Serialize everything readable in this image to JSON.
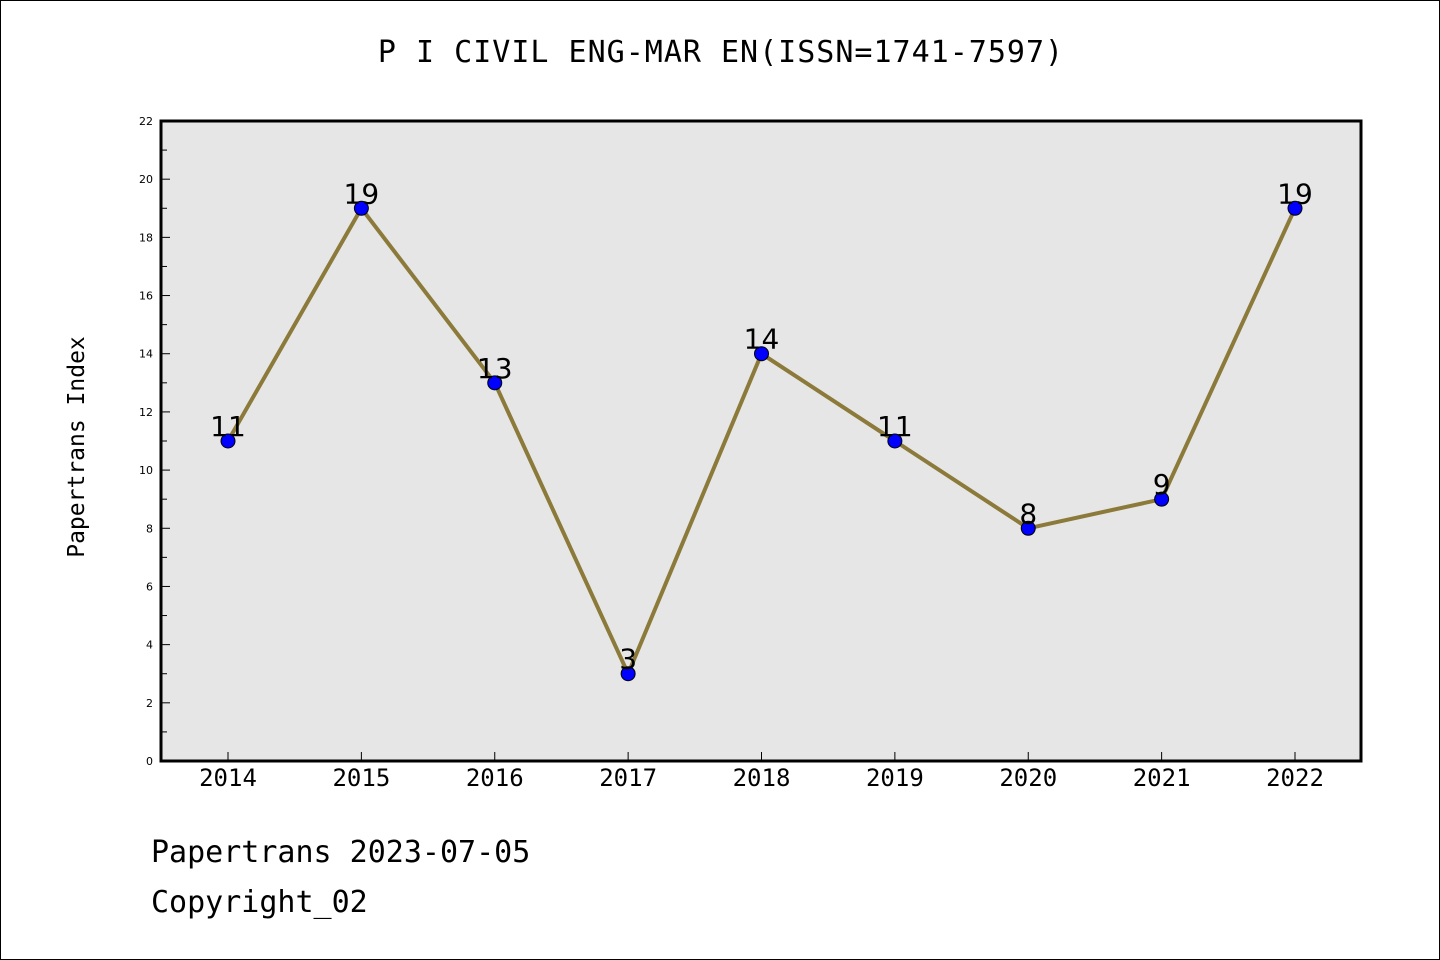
{
  "chart_data": {
    "type": "line",
    "title": "P I CIVIL ENG-MAR EN(ISSN=1741-7597)",
    "xlabel": "",
    "ylabel": "Papertrans Index",
    "categories": [
      "2014",
      "2015",
      "2016",
      "2017",
      "2018",
      "2019",
      "2020",
      "2021",
      "2022"
    ],
    "series": [
      {
        "values": [
          11,
          19,
          13,
          3,
          14,
          11,
          8,
          9,
          19
        ]
      }
    ],
    "ylim": [
      0,
      22
    ],
    "yticks": [
      0,
      2,
      4,
      6,
      8,
      10,
      12,
      14,
      16,
      18,
      20,
      22
    ],
    "grid": false,
    "data_labels": true,
    "colors": {
      "line": "#8c7a3a",
      "marker": "#0000ff",
      "plot_background": "#e6e6e6"
    }
  },
  "footer": {
    "line1": "Papertrans 2023-07-05",
    "line2": "Copyright_02"
  }
}
